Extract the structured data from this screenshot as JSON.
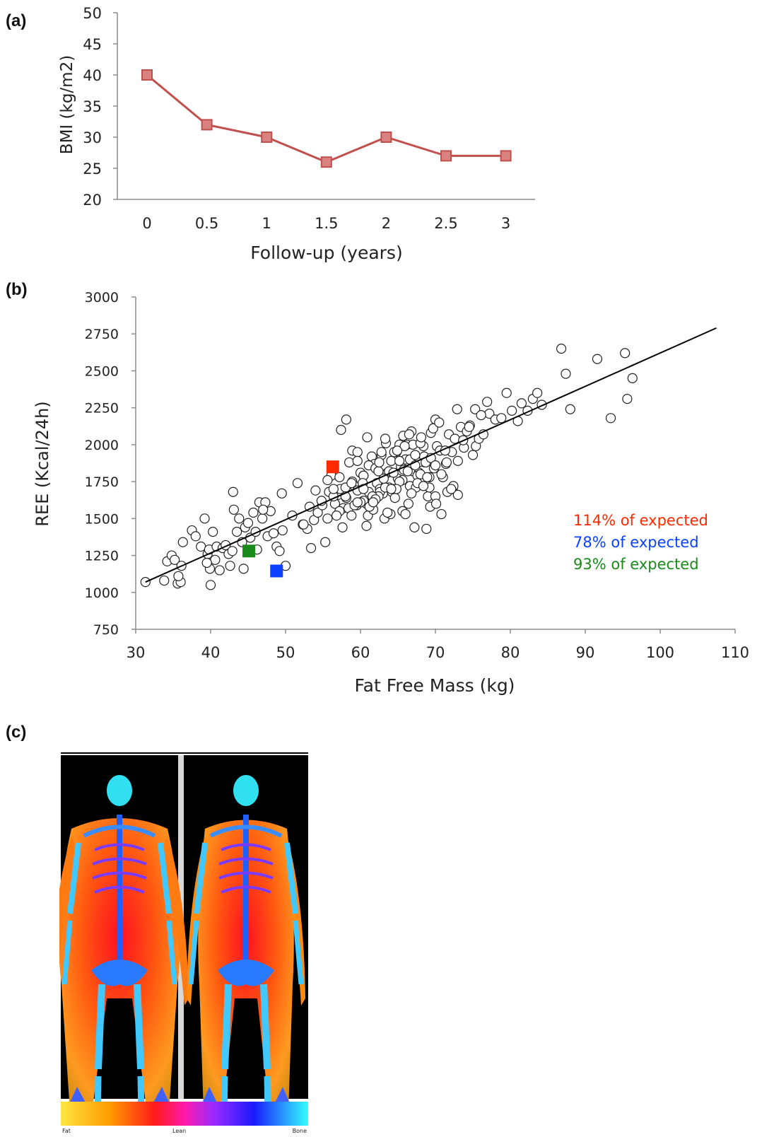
{
  "panels": {
    "a": "(a)",
    "b": "(b)",
    "c": "(c)"
  },
  "colors": {
    "line_a": "#c0504d",
    "marker_a": "#d9827f",
    "red": "#ff2a00",
    "blue": "#0a40ff",
    "green": "#1a8a1a",
    "dexa_background": "#000000"
  },
  "chart_data": [
    {
      "type": "line",
      "xlabel": "Follow-up (years)",
      "ylabel": "BMI (kg/m2)",
      "categories": [
        "0",
        "0.5",
        "1",
        "1.5",
        "2",
        "2.5",
        "3"
      ],
      "values": [
        40,
        32,
        30,
        26,
        30,
        27,
        27
      ],
      "ylim": [
        20,
        50
      ],
      "yticks": [
        "20",
        "25",
        "30",
        "35",
        "40",
        "45",
        "50"
      ],
      "grid": false,
      "marker": "square"
    },
    {
      "type": "scatter",
      "xlabel": "Fat Free Mass (kg)",
      "ylabel": "REE (Kcal/24h)",
      "xlim": [
        30,
        110
      ],
      "ylim": [
        750,
        3000
      ],
      "xticks": [
        "30",
        "40",
        "50",
        "60",
        "70",
        "80",
        "90",
        "100",
        "110"
      ],
      "yticks": [
        "750",
        "1000",
        "1250",
        "1500",
        "1750",
        "2000",
        "2250",
        "2500",
        "2750",
        "3000"
      ],
      "grid": false,
      "trendline": {
        "x": [
          31.3,
          107.5
        ],
        "y": [
          1070,
          2790
        ]
      },
      "points": {
        "x": [
          31.3,
          33.8,
          34.2,
          34.8,
          35.2,
          35.6,
          36.1,
          36.0,
          35.7,
          36.3,
          37.5,
          38.0,
          38.7,
          39.2,
          39.6,
          39.9,
          40.3,
          40.6,
          39.5,
          39.8,
          40.0,
          40.8,
          41.2,
          41.6,
          42.0,
          42.4,
          42.9,
          43.1,
          43.5,
          43.8,
          44.2,
          44.6,
          45.0,
          45.3,
          45.7,
          46.0,
          46.5,
          46.9,
          47.3,
          47.6,
          48.0,
          48.4,
          48.8,
          49.2,
          49.6,
          50.0,
          43.0,
          42.6,
          44.4,
          46.2,
          47.0,
          49.5,
          50.9,
          51.6,
          52.3,
          52.9,
          53.4,
          53.8,
          54.3,
          54.9,
          55.3,
          55.8,
          56.1,
          56.6,
          57.0,
          57.3,
          57.7,
          58.1,
          58.5,
          58.9,
          59.2,
          59.6,
          60.0,
          60.4,
          60.8,
          61.1,
          61.5,
          61.9,
          62.2,
          62.6,
          63.0,
          63.4,
          63.8,
          64.2,
          64.6,
          65.0,
          65.4,
          65.8,
          66.2,
          66.6,
          67.0,
          67.4,
          67.8,
          68.2,
          68.6,
          69.0,
          69.4,
          69.8,
          70.2,
          70.6,
          71.0,
          71.4,
          71.8,
          72.2,
          72.6,
          73.0,
          73.4,
          73.8,
          74.2,
          74.6,
          75.0,
          75.4,
          75.8,
          76.4,
          77.2,
          78.0,
          78.8,
          79.5,
          80.2,
          81.0,
          81.5,
          82.3,
          83.0,
          83.6,
          84.2,
          86.8,
          87.4,
          88.0,
          91.6,
          93.4,
          95.3,
          95.6,
          96.3,
          57.4,
          58.1,
          58.9,
          59.6,
          60.4,
          61.1,
          61.8,
          62.6,
          63.3,
          64.1,
          64.8,
          65.6,
          66.3,
          67.0,
          67.8,
          68.5,
          69.3,
          70.0,
          70.8,
          71.5,
          72.3,
          73.0,
          55.6,
          56.4,
          57.2,
          58.0,
          58.8,
          59.6,
          60.4,
          61.2,
          62.0,
          62.8,
          63.6,
          64.4,
          65.2,
          66.0,
          66.8,
          67.6,
          68.4,
          69.2,
          70.0,
          70.8,
          71.6,
          72.4,
          59.5,
          60.3,
          61.0,
          61.7,
          62.4,
          63.1,
          63.8,
          64.5,
          65.2,
          65.9,
          66.6,
          67.3,
          68.0,
          68.7,
          69.4,
          70.1,
          56.8,
          57.6,
          58.4,
          59.2,
          60.0,
          60.8,
          61.6,
          62.4,
          63.2,
          64.0,
          64.8,
          65.6,
          66.4,
          67.2,
          68.0,
          68.8,
          52.4,
          53.2,
          54.0,
          54.8,
          55.6,
          56.4,
          57.2,
          58.0,
          58.8,
          59.6,
          60.4,
          61.2,
          62.0,
          62.8,
          63.6,
          64.4,
          65.2,
          66.0,
          66.8,
          67.6,
          68.4,
          69.2,
          70.0,
          60.9,
          61.7,
          62.5,
          63.3,
          64.1,
          64.9,
          65.7,
          66.5,
          67.3,
          68.1,
          68.9,
          69.7,
          70.5,
          71.3,
          72.1,
          72.9,
          73.7,
          74.5,
          75.3,
          76.1,
          76.9
        ],
        "y": [
          1070,
          1080,
          1210,
          1250,
          1220,
          1060,
          1180,
          1070,
          1110,
          1340,
          1420,
          1380,
          1310,
          1500,
          1260,
          1160,
          1410,
          1220,
          1200,
          1290,
          1050,
          1310,
          1150,
          1300,
          1320,
          1260,
          1280,
          1560,
          1410,
          1500,
          1340,
          1440,
          1470,
          1370,
          1540,
          1410,
          1610,
          1500,
          1610,
          1380,
          1550,
          1400,
          1310,
          1280,
          1420,
          1180,
          1680,
          1180,
          1160,
          1290,
          1560,
          1670,
          1520,
          1740,
          1460,
          1430,
          1300,
          1490,
          1540,
          1590,
          1340,
          1680,
          1790,
          1600,
          1660,
          1700,
          1570,
          1640,
          1880,
          1750,
          1720,
          1690,
          1810,
          1790,
          1600,
          1680,
          1920,
          1870,
          1740,
          1700,
          1670,
          2010,
          1710,
          1680,
          1640,
          1770,
          1850,
          1830,
          2000,
          1720,
          1820,
          1710,
          1810,
          1770,
          1880,
          1650,
          2080,
          1840,
          1990,
          1960,
          1780,
          1870,
          2070,
          1950,
          2040,
          1890,
          2120,
          1980,
          2090,
          2130,
          1930,
          1990,
          2040,
          2070,
          2210,
          2170,
          2180,
          2350,
          2230,
          2160,
          2280,
          2230,
          2310,
          2350,
          2270,
          2650,
          2480,
          2240,
          2580,
          2180,
          2620,
          2310,
          2450,
          2100,
          2170,
          1960,
          1950,
          1790,
          1860,
          1620,
          1680,
          1710,
          1890,
          1950,
          1760,
          1820,
          2000,
          1880,
          1920,
          1580,
          1650,
          1800,
          1880,
          1700,
          1660,
          1760,
          1650,
          1550,
          1710,
          1740,
          1890,
          1620,
          1580,
          1840,
          1930,
          1810,
          1700,
          1750,
          1900,
          2090,
          1790,
          1990,
          1710,
          2170,
          1530,
          1680,
          1720,
          1590,
          1740,
          1520,
          1560,
          1650,
          1770,
          1820,
          1950,
          2000,
          1990,
          1900,
          1860,
          2010,
          1880,
          1910,
          1600,
          1520,
          1440,
          1570,
          1590,
          1610,
          1450,
          1650,
          1820,
          1500,
          1530,
          1700,
          1550,
          1600,
          1440,
          1800,
          1430,
          1460,
          1580,
          1690,
          1620,
          1500,
          1700,
          1780,
          1650,
          1520,
          1610,
          1700,
          1580,
          1630,
          1950,
          1540,
          1810,
          1890,
          1530,
          1670,
          1740,
          1720,
          1780,
          1860,
          2050,
          1610,
          1880,
          2040,
          1700,
          1960,
          2060,
          2070,
          1930,
          2050,
          1780,
          2110,
          2150,
          1960,
          1700,
          2240,
          2030,
          2120,
          2240,
          2200,
          2290
        ]
      },
      "highlighted": [
        {
          "x": 56.3,
          "y": 1850,
          "color": "#ff2a00",
          "label": "114% of expected"
        },
        {
          "x": 48.8,
          "y": 1145,
          "color": "#0a40ff",
          "label": "78% of expected"
        },
        {
          "x": 45.1,
          "y": 1280,
          "color": "#1a8a1a",
          "label": "93% of expected"
        }
      ]
    }
  ],
  "dexa": {
    "legend_labels": [
      "Fat",
      "Lean",
      "Bone"
    ]
  }
}
